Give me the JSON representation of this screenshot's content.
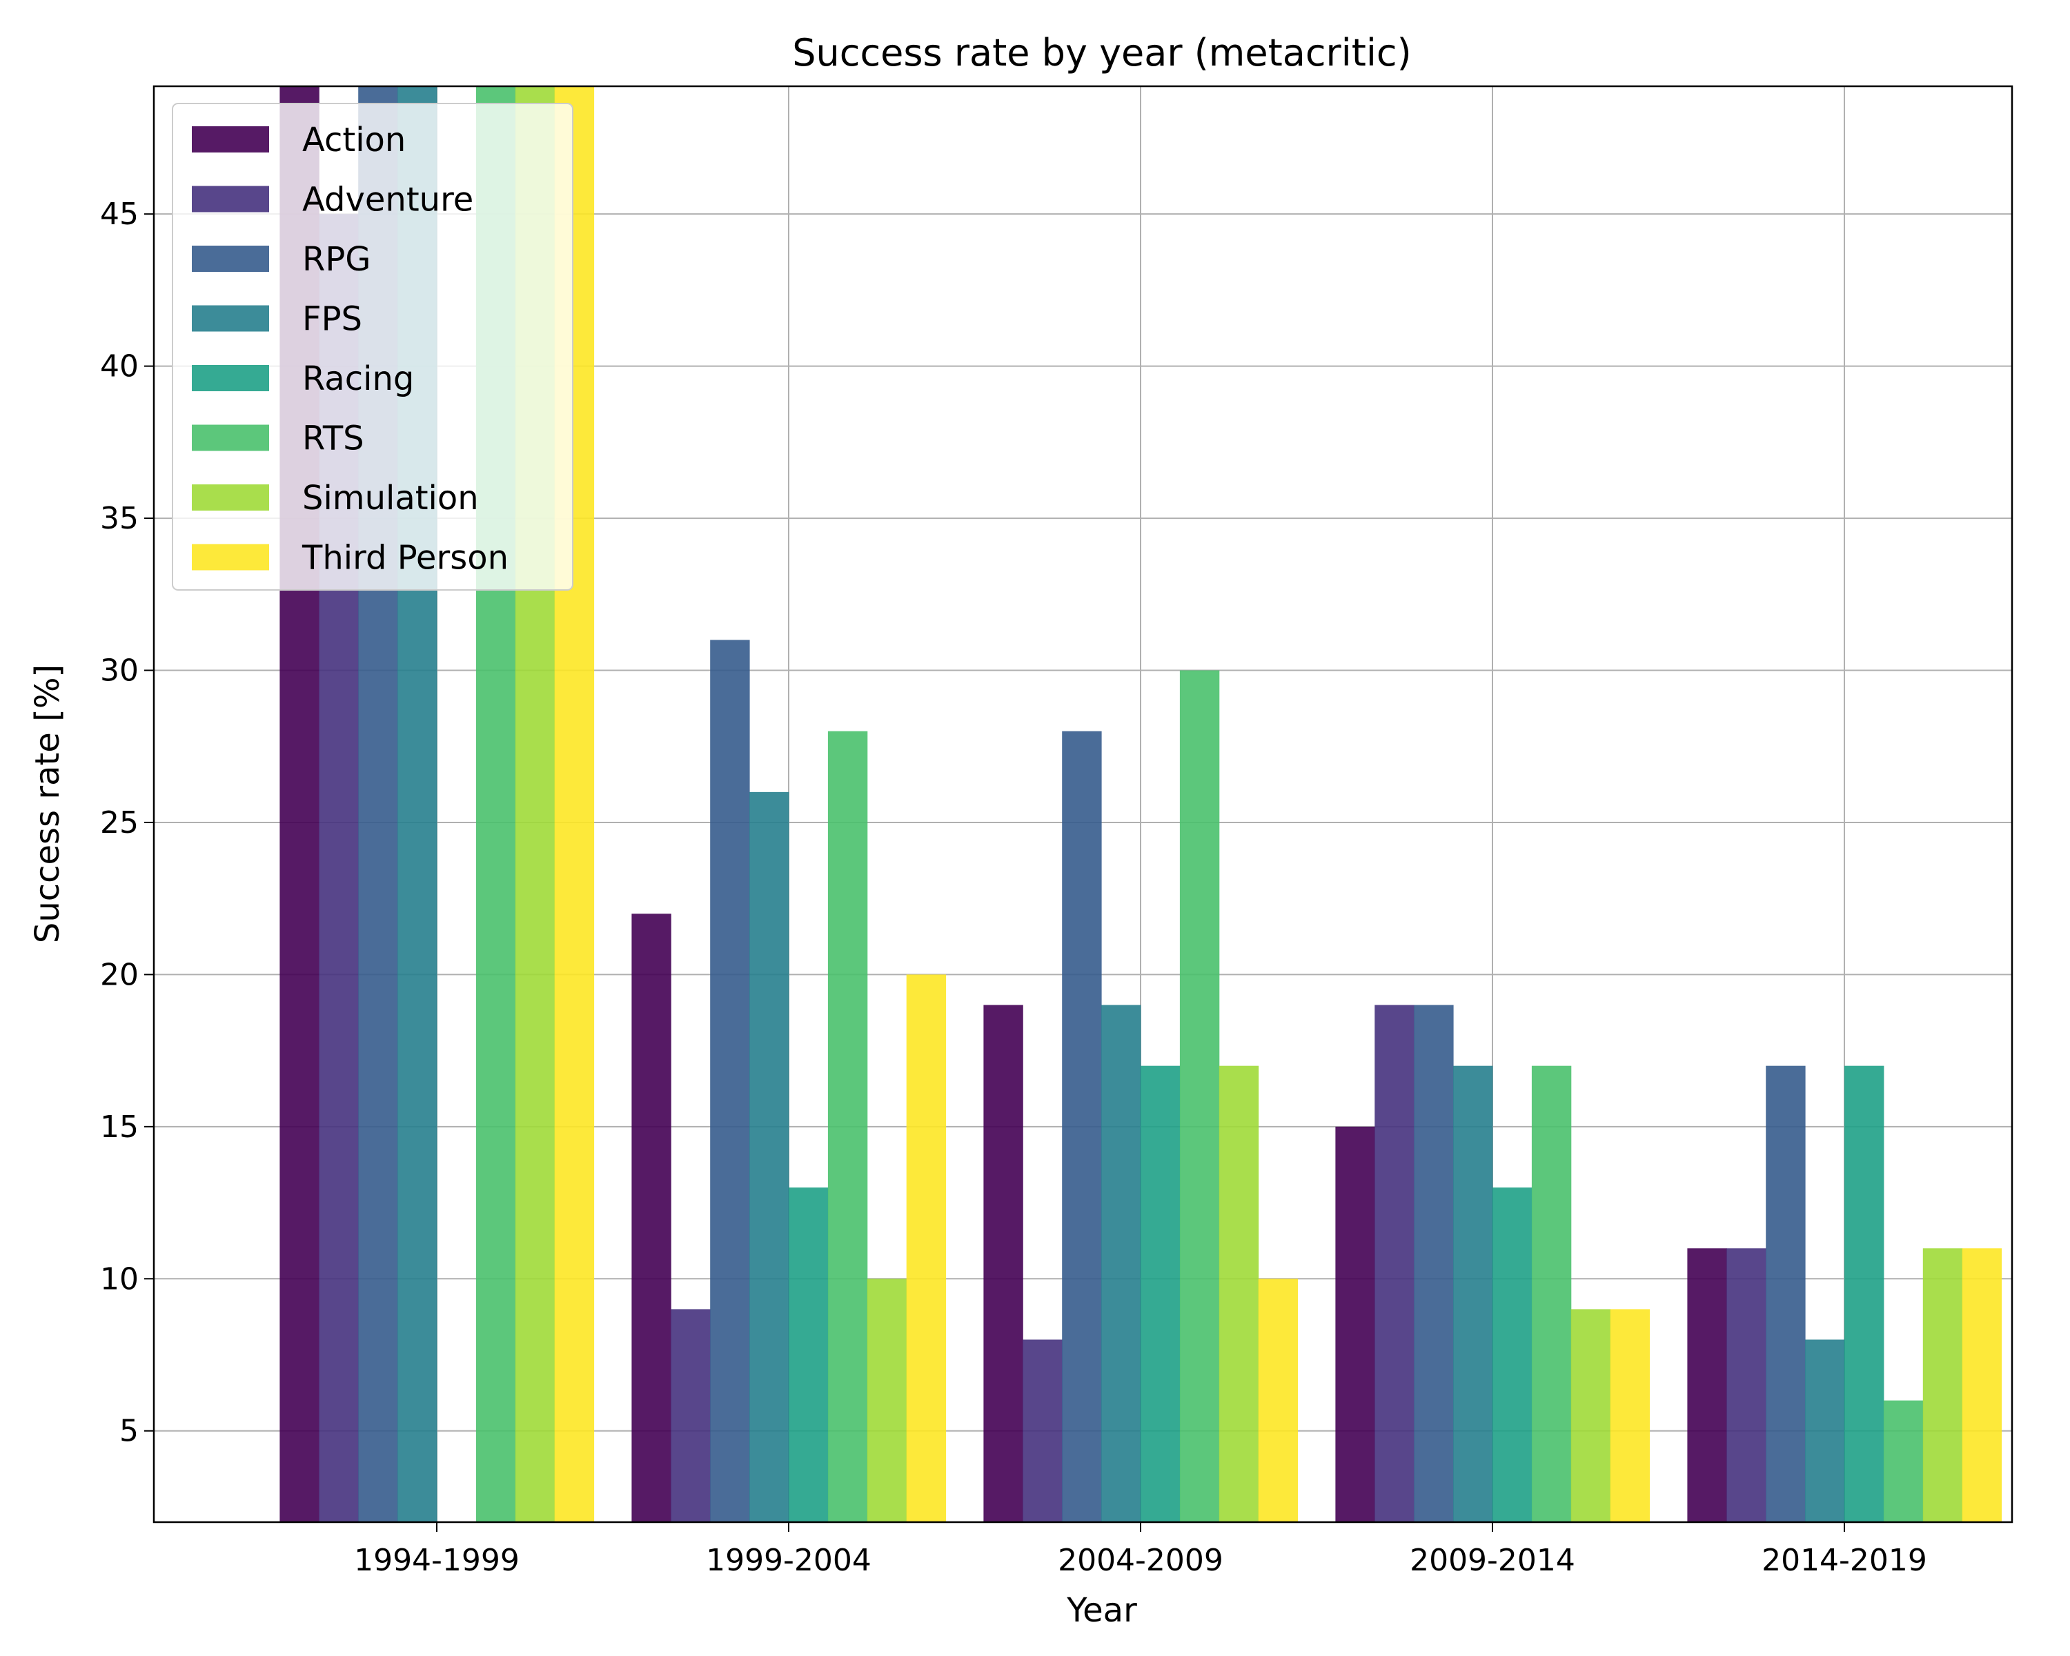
{
  "chart_data": {
    "type": "bar",
    "title": "Success rate by year (metacritic)",
    "xlabel": "Year",
    "ylabel": "Success rate [%]",
    "ylim": [
      2,
      49.2
    ],
    "yticks": [
      5,
      10,
      15,
      20,
      25,
      30,
      35,
      40,
      45
    ],
    "grid": true,
    "legend_position": "top-left",
    "categories": [
      "1994-1999",
      "1999-2004",
      "2004-2009",
      "2009-2014",
      "2014-2019"
    ],
    "series": [
      {
        "name": "Action",
        "color": "#440154",
        "values": [
          50,
          22,
          19,
          15,
          11
        ]
      },
      {
        "name": "Adventure",
        "color": "#46327e",
        "values": [
          45,
          9,
          8,
          19,
          11
        ]
      },
      {
        "name": "RPG",
        "color": "#365c8d",
        "values": [
          50,
          31,
          28,
          19,
          17
        ]
      },
      {
        "name": "FPS",
        "color": "#277f8e",
        "values": [
          50,
          26,
          19,
          17,
          8
        ]
      },
      {
        "name": "Racing",
        "color": "#1fa187",
        "values": [
          0,
          13,
          17,
          13,
          17
        ]
      },
      {
        "name": "RTS",
        "color": "#4ac16d",
        "values": [
          50,
          28,
          30,
          17,
          6
        ]
      },
      {
        "name": "Simulation",
        "color": "#a0da39",
        "values": [
          50,
          10,
          17,
          9,
          11
        ]
      },
      {
        "name": "Third Person",
        "color": "#fde725",
        "values": [
          50,
          20,
          10,
          9,
          11
        ]
      }
    ]
  }
}
